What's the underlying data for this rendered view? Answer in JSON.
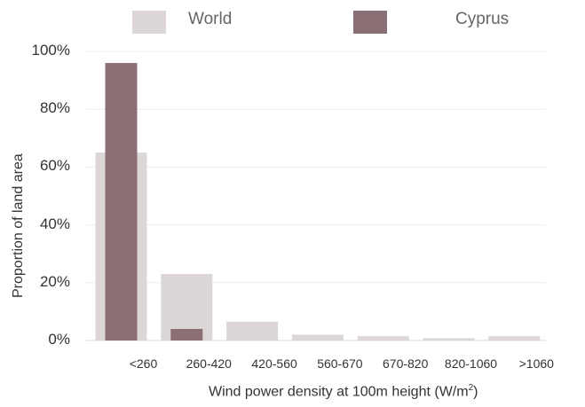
{
  "chart_data": {
    "type": "bar",
    "categories": [
      "<260",
      "260-420",
      "420-560",
      "560-670",
      "670-820",
      "820-1060",
      ">1060"
    ],
    "series": [
      {
        "name": "World",
        "color": "#dcd6d6",
        "values": [
          65,
          23,
          6.5,
          2,
          1.5,
          0.8,
          1.5
        ]
      },
      {
        "name": "Cyprus",
        "color": "#8a7074",
        "values": [
          96,
          4,
          0,
          0,
          0,
          0,
          0
        ]
      }
    ],
    "xlabel_text": "Wind power density at 100m height (W/m",
    "xlabel_sup": "2",
    "xlabel_close": ")",
    "ylabel": "Proportion of land area",
    "yticks": [
      "0%",
      "20%",
      "40%",
      "60%",
      "80%",
      "100%"
    ],
    "ylim": [
      0,
      100
    ],
    "grid": true,
    "legend": "top"
  }
}
